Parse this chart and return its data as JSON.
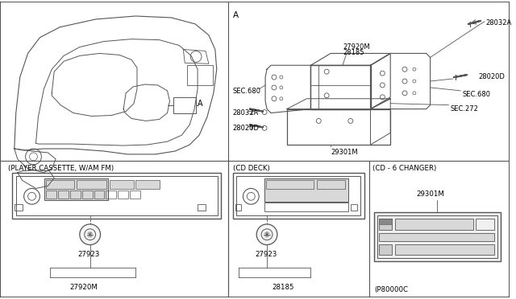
{
  "bg_color": "#ffffff",
  "line_color": "#555555",
  "figsize": [
    6.4,
    3.72
  ],
  "dpi": 100,
  "labels": {
    "A_corner": "A",
    "section_cassette": "(PLAYER CASSETTE, W/AM FM)",
    "section_cd": "(CD DECK)",
    "section_changer": "(CD - 6 CHANGER)",
    "part_27920M": "27920M",
    "part_28185": "28185",
    "part_28032A_top": "28032A",
    "part_28020D_top": "28020D",
    "part_SEC680_left": "SEC.680",
    "part_SEC680_right": "SEC.680",
    "part_SEC272": "SEC.272",
    "part_28032A_bot": "28032A",
    "part_28020D_bot": "28020D",
    "part_29301M_top": "29301M",
    "part_29301M_bot": "29301M",
    "part_27923_left": "27923",
    "part_27923_right": "27923",
    "part_27920M_bot": "27920M",
    "part_28185_bot": "28185",
    "part_p80000c": "(P80000C"
  }
}
